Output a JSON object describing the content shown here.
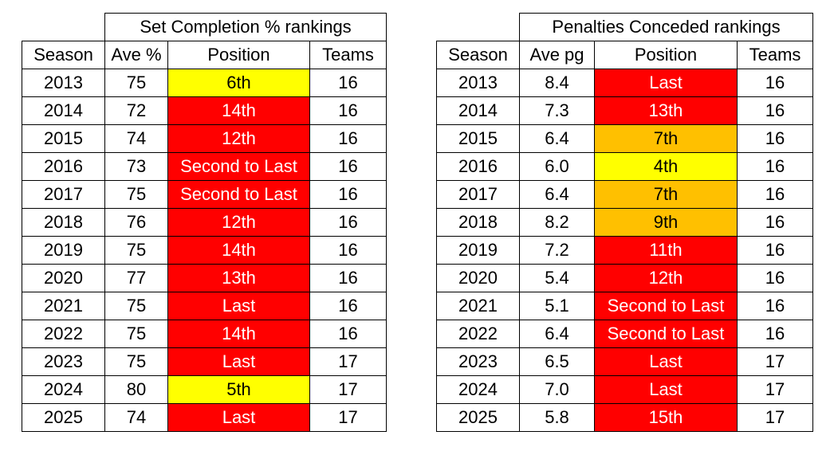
{
  "set_completion": {
    "title": "Set Completion % rankings",
    "headers": [
      "Season",
      "Ave %",
      "Position",
      "Teams"
    ],
    "rows": [
      {
        "season": "2013",
        "ave": "75",
        "position": "6th",
        "teams": "16",
        "color": "yellow"
      },
      {
        "season": "2014",
        "ave": "72",
        "position": "14th",
        "teams": "16",
        "color": "red"
      },
      {
        "season": "2015",
        "ave": "74",
        "position": "12th",
        "teams": "16",
        "color": "red"
      },
      {
        "season": "2016",
        "ave": "73",
        "position": "Second to Last",
        "teams": "16",
        "color": "red"
      },
      {
        "season": "2017",
        "ave": "75",
        "position": "Second to Last",
        "teams": "16",
        "color": "red"
      },
      {
        "season": "2018",
        "ave": "76",
        "position": "12th",
        "teams": "16",
        "color": "red"
      },
      {
        "season": "2019",
        "ave": "75",
        "position": "14th",
        "teams": "16",
        "color": "red"
      },
      {
        "season": "2020",
        "ave": "77",
        "position": "13th",
        "teams": "16",
        "color": "red"
      },
      {
        "season": "2021",
        "ave": "75",
        "position": "Last",
        "teams": "16",
        "color": "red"
      },
      {
        "season": "2022",
        "ave": "75",
        "position": "14th",
        "teams": "16",
        "color": "red"
      },
      {
        "season": "2023",
        "ave": "75",
        "position": "Last",
        "teams": "17",
        "color": "red"
      },
      {
        "season": "2024",
        "ave": "80",
        "position": "5th",
        "teams": "17",
        "color": "yellow"
      },
      {
        "season": "2025",
        "ave": "74",
        "position": "Last",
        "teams": "17",
        "color": "red"
      }
    ]
  },
  "penalties": {
    "title": "Penalties Conceded rankings",
    "headers": [
      "Season",
      "Ave pg",
      "Position",
      "Teams"
    ],
    "rows": [
      {
        "season": "2013",
        "ave": "8.4",
        "position": "Last",
        "teams": "16",
        "color": "red"
      },
      {
        "season": "2014",
        "ave": "7.3",
        "position": "13th",
        "teams": "16",
        "color": "red"
      },
      {
        "season": "2015",
        "ave": "6.4",
        "position": "7th",
        "teams": "16",
        "color": "orange"
      },
      {
        "season": "2016",
        "ave": "6.0",
        "position": "4th",
        "teams": "16",
        "color": "yellow"
      },
      {
        "season": "2017",
        "ave": "6.4",
        "position": "7th",
        "teams": "16",
        "color": "orange"
      },
      {
        "season": "2018",
        "ave": "8.2",
        "position": "9th",
        "teams": "16",
        "color": "orange"
      },
      {
        "season": "2019",
        "ave": "7.2",
        "position": "11th",
        "teams": "16",
        "color": "red"
      },
      {
        "season": "2020",
        "ave": "5.4",
        "position": "12th",
        "teams": "16",
        "color": "red"
      },
      {
        "season": "2021",
        "ave": "5.1",
        "position": "Second to Last",
        "teams": "16",
        "color": "red"
      },
      {
        "season": "2022",
        "ave": "6.4",
        "position": "Second to Last",
        "teams": "16",
        "color": "red"
      },
      {
        "season": "2023",
        "ave": "6.5",
        "position": "Last",
        "teams": "17",
        "color": "red"
      },
      {
        "season": "2024",
        "ave": "7.0",
        "position": "Last",
        "teams": "17",
        "color": "red"
      },
      {
        "season": "2025",
        "ave": "5.8",
        "position": "15th",
        "teams": "17",
        "color": "red"
      }
    ]
  },
  "colors": {
    "red": "#ff0000",
    "yellow": "#ffff00",
    "orange": "#ffc000"
  }
}
